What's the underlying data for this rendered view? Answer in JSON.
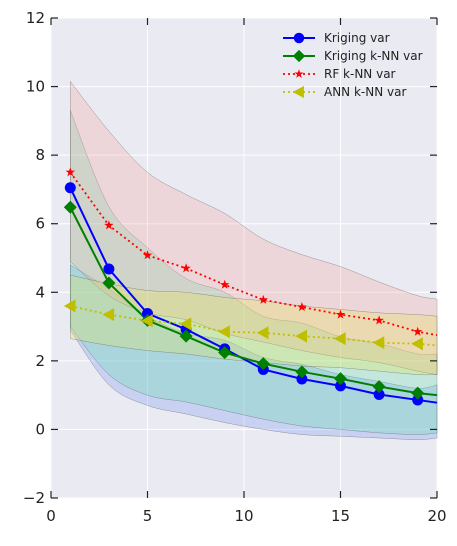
{
  "chart_data": {
    "type": "line",
    "xlim": [
      0,
      20
    ],
    "ylim": [
      -2,
      12
    ],
    "xticks": [
      0,
      5,
      10,
      15,
      20
    ],
    "yticks": [
      -2,
      0,
      2,
      4,
      6,
      8,
      10,
      12
    ],
    "xtick_labels": [
      "0",
      "5",
      "10",
      "15",
      "20"
    ],
    "ytick_labels": [
      "−2",
      "0",
      "2",
      "4",
      "6",
      "8",
      "10",
      "12"
    ],
    "grid": true,
    "legend_position": "top-right",
    "background_color": "#eaeaf2",
    "series": [
      {
        "name": "Kriging var",
        "color": "#0000ff",
        "linestyle": "solid",
        "marker": "circle",
        "x": [
          1,
          3,
          5,
          7,
          9,
          11,
          13,
          15,
          17,
          19,
          20
        ],
        "y": [
          7.05,
          4.68,
          3.38,
          2.92,
          2.35,
          1.75,
          1.47,
          1.27,
          1.02,
          0.86,
          0.78
        ],
        "marker_x": [
          1,
          3,
          5,
          7,
          9,
          11,
          13,
          15,
          17,
          19
        ],
        "marker_y": [
          7.05,
          4.68,
          3.38,
          2.92,
          2.35,
          1.75,
          1.47,
          1.27,
          1.02,
          0.86
        ],
        "band_upper": [
          4.8,
          4.1,
          3.3,
          2.8,
          2.6,
          2.1,
          1.9,
          1.6,
          1.4,
          1.2,
          1.3
        ],
        "band_lower": [
          2.9,
          1.3,
          0.7,
          0.45,
          0.2,
          0.0,
          -0.15,
          -0.2,
          -0.25,
          -0.3,
          -0.25
        ],
        "band_color": "#6f8ff0"
      },
      {
        "name": "Kriging k-NN var",
        "color": "#008000",
        "linestyle": "solid",
        "marker": "diamond",
        "x": [
          1,
          3,
          5,
          7,
          9,
          11,
          13,
          15,
          17,
          19,
          20
        ],
        "y": [
          6.48,
          4.27,
          3.18,
          2.72,
          2.24,
          1.92,
          1.68,
          1.48,
          1.25,
          1.06,
          1.0
        ],
        "marker_x": [
          1,
          3,
          5,
          7,
          9,
          11,
          13,
          15,
          17,
          19
        ],
        "marker_y": [
          6.48,
          4.27,
          3.18,
          2.72,
          2.24,
          1.92,
          1.68,
          1.48,
          1.25,
          1.06
        ],
        "band_upper": [
          9.3,
          6.5,
          5.3,
          4.4,
          4.0,
          3.3,
          3.1,
          2.7,
          2.5,
          2.2,
          2.2
        ],
        "band_lower": [
          3.0,
          1.6,
          1.0,
          0.8,
          0.55,
          0.3,
          0.1,
          0.0,
          -0.1,
          -0.15,
          -0.1
        ],
        "band_color": "#5fe0a8"
      },
      {
        "name": "RF k-NN var",
        "color": "#ff0000",
        "linestyle": "dotted",
        "marker": "star",
        "x": [
          1,
          3,
          5,
          7,
          9,
          11,
          13,
          15,
          17,
          19,
          20
        ],
        "y": [
          7.5,
          5.95,
          5.08,
          4.7,
          4.22,
          3.78,
          3.57,
          3.35,
          3.18,
          2.85,
          2.75
        ],
        "marker_x": [
          1,
          3,
          5,
          7,
          9,
          11,
          13,
          15,
          17,
          19
        ],
        "marker_y": [
          7.5,
          5.95,
          5.08,
          4.7,
          4.22,
          3.78,
          3.57,
          3.35,
          3.18,
          2.85
        ],
        "band_upper": [
          10.15,
          8.7,
          7.5,
          6.85,
          6.3,
          5.55,
          5.1,
          4.75,
          4.3,
          3.9,
          3.8
        ],
        "band_lower": [
          4.9,
          3.9,
          3.4,
          3.2,
          2.8,
          2.55,
          2.3,
          2.1,
          1.95,
          1.7,
          1.6
        ],
        "band_color": "#f3a39a"
      },
      {
        "name": "ANN k-NN var",
        "color": "#bfbf00",
        "linestyle": "dotted",
        "marker": "triangle-left",
        "x": [
          1,
          3,
          5,
          7,
          9,
          11,
          13,
          15,
          17,
          19,
          20
        ],
        "y": [
          3.6,
          3.35,
          3.17,
          3.08,
          2.85,
          2.82,
          2.72,
          2.65,
          2.53,
          2.5,
          2.45
        ],
        "marker_x": [
          1,
          3,
          5,
          7,
          9,
          11,
          13,
          15,
          17,
          19
        ],
        "marker_y": [
          3.6,
          3.35,
          3.17,
          3.08,
          2.85,
          2.82,
          2.72,
          2.65,
          2.53,
          2.5
        ],
        "band_upper": [
          4.5,
          4.25,
          4.05,
          4.0,
          3.85,
          3.75,
          3.6,
          3.5,
          3.4,
          3.35,
          3.3
        ],
        "band_lower": [
          2.65,
          2.45,
          2.3,
          2.2,
          2.05,
          1.95,
          1.85,
          1.8,
          1.7,
          1.6,
          1.6
        ],
        "band_color": "#e6e64a"
      }
    ]
  }
}
